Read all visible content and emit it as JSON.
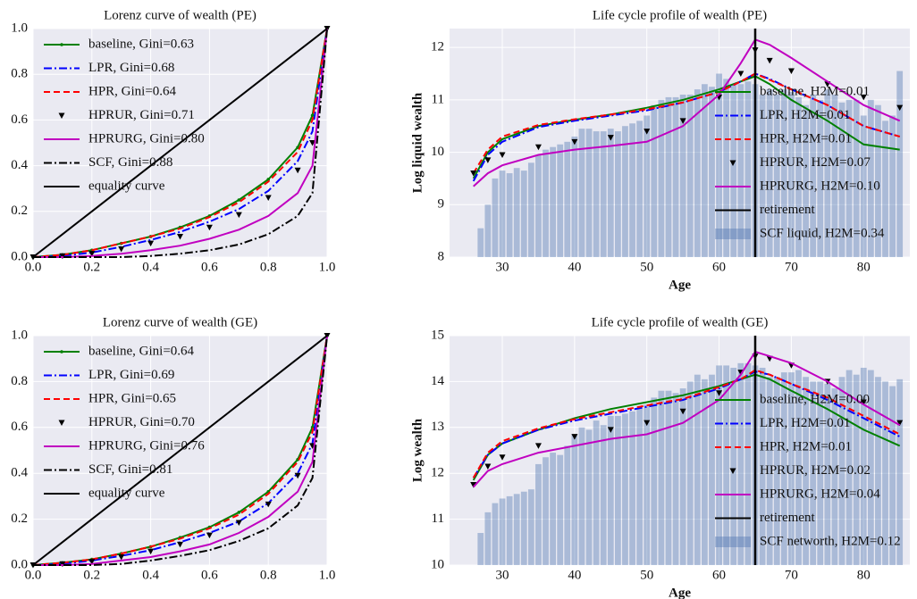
{
  "chart_data": [
    {
      "type": "line",
      "title": "Lorenz curve of wealth (PE)",
      "legend": "upper left",
      "grid": true,
      "xlim": [
        0,
        1
      ],
      "ylim": [
        0,
        1
      ],
      "xticks": [
        {
          "value": 0,
          "label": "0.0"
        },
        0.2,
        0.4,
        0.6,
        0.8,
        {
          "value": 1,
          "label": "1.0"
        }
      ],
      "yticks": [
        {
          "value": 0,
          "label": "0.0"
        },
        0.2,
        0.4,
        0.6,
        0.8,
        {
          "value": 1,
          "label": "1.0"
        }
      ],
      "x": [
        0,
        0.1,
        0.2,
        0.3,
        0.4,
        0.5,
        0.6,
        0.7,
        0.8,
        0.9,
        0.95,
        1
      ],
      "series": [
        {
          "name": "baseline, Gini=0.63",
          "color": "#008000",
          "linestyle": "-",
          "marker": ".",
          "values": [
            0,
            0.01,
            0.03,
            0.06,
            0.09,
            0.13,
            0.18,
            0.25,
            0.34,
            0.48,
            0.62,
            1
          ]
        },
        {
          "name": "LPR, Gini=0.68",
          "color": "#0000ff",
          "linestyle": "-.",
          "marker": "none",
          "values": [
            0,
            0.005,
            0.02,
            0.045,
            0.075,
            0.11,
            0.155,
            0.21,
            0.29,
            0.42,
            0.55,
            1
          ]
        },
        {
          "name": "HPR, Gini=0.64",
          "color": "#ff0000",
          "linestyle": "--",
          "marker": "none",
          "values": [
            0,
            0.01,
            0.03,
            0.06,
            0.09,
            0.125,
            0.175,
            0.24,
            0.33,
            0.46,
            0.6,
            1
          ]
        },
        {
          "name": "HPRUR, Gini=0.71",
          "color": "#000000",
          "linestyle": "none",
          "marker": "v",
          "values": [
            0,
            0.005,
            0.015,
            0.035,
            0.06,
            0.09,
            0.13,
            0.185,
            0.26,
            0.38,
            0.5,
            1
          ]
        },
        {
          "name": "HPRURG, Gini=0.80",
          "color": "#c000c0",
          "linestyle": "-",
          "marker": "none",
          "values": [
            0,
            0,
            0.005,
            0.015,
            0.03,
            0.05,
            0.08,
            0.12,
            0.18,
            0.28,
            0.4,
            1
          ]
        },
        {
          "name": "SCF, Gini=0.88",
          "color": "#000000",
          "linestyle": "-.",
          "marker": "none",
          "values": [
            0,
            0,
            0,
            0,
            0.005,
            0.015,
            0.03,
            0.055,
            0.1,
            0.18,
            0.28,
            1
          ]
        },
        {
          "name": "equality curve",
          "color": "#000000",
          "linestyle": "-",
          "marker": "none",
          "values": [
            0,
            0.1,
            0.2,
            0.3,
            0.4,
            0.5,
            0.6,
            0.7,
            0.8,
            0.9,
            0.95,
            1
          ]
        }
      ]
    },
    {
      "type": "combo",
      "title": "Life cycle profile of wealth (PE)",
      "x_label": "Age",
      "y_label": "Log liquid wealth",
      "legend": "lower right",
      "grid": true,
      "xlim": [
        22.7,
        86.4
      ],
      "ylim": [
        8,
        12.36
      ],
      "xticks": [
        30,
        40,
        50,
        60,
        70,
        80
      ],
      "yticks": [
        8,
        9,
        10,
        11,
        12
      ],
      "x": [
        26,
        28,
        30,
        35,
        40,
        45,
        50,
        55,
        60,
        63,
        65,
        67,
        70,
        75,
        80,
        85
      ],
      "series": [
        {
          "name": "baseline, H2M=0.01",
          "color": "#008000",
          "linestyle": "-",
          "marker": "none",
          "values": [
            9.5,
            10.0,
            10.25,
            10.5,
            10.62,
            10.72,
            10.85,
            11.0,
            11.2,
            11.35,
            11.45,
            11.3,
            11.0,
            10.6,
            10.15,
            10.05
          ]
        },
        {
          "name": "LPR, H2M=0.01",
          "color": "#0000ff",
          "linestyle": "-.",
          "marker": "none",
          "values": [
            9.45,
            9.95,
            10.2,
            10.48,
            10.6,
            10.7,
            10.8,
            10.95,
            11.15,
            11.35,
            11.5,
            11.4,
            11.2,
            10.9,
            10.5,
            10.3
          ]
        },
        {
          "name": "HPR, H2M=0.01",
          "color": "#ff0000",
          "linestyle": "--",
          "marker": "none",
          "values": [
            9.6,
            10.05,
            10.3,
            10.52,
            10.63,
            10.72,
            10.82,
            10.95,
            11.15,
            11.35,
            11.5,
            11.38,
            11.2,
            10.9,
            10.5,
            10.3
          ]
        },
        {
          "name": "HPRUR, H2M=0.07",
          "color": "#000000",
          "linestyle": "none",
          "marker": "v",
          "values": [
            9.6,
            9.85,
            9.95,
            10.1,
            10.2,
            10.28,
            10.4,
            10.6,
            11.05,
            11.5,
            11.95,
            11.75,
            11.55,
            11.3,
            11.05,
            10.85
          ]
        },
        {
          "name": "HPRURG, H2M=0.10",
          "color": "#c000c0",
          "linestyle": "-",
          "marker": "none",
          "values": [
            9.35,
            9.6,
            9.75,
            9.95,
            10.05,
            10.12,
            10.2,
            10.5,
            11.1,
            11.7,
            12.15,
            12.05,
            11.8,
            11.35,
            10.9,
            10.6
          ]
        },
        {
          "name": "retirement",
          "color": "#000000",
          "vline": 65
        },
        {
          "name": "SCF liquid, H2M=0.34",
          "color": "#4c72b0",
          "alpha": 0.4,
          "kind": "bar",
          "x": [
            27,
            28,
            29,
            30,
            31,
            32,
            33,
            34,
            35,
            36,
            37,
            38,
            39,
            40,
            41,
            42,
            43,
            44,
            45,
            46,
            47,
            48,
            49,
            50,
            51,
            52,
            53,
            54,
            55,
            56,
            57,
            58,
            59,
            60,
            61,
            62,
            63,
            64,
            65,
            66,
            67,
            68,
            69,
            70,
            71,
            72,
            73,
            74,
            75,
            76,
            77,
            78,
            79,
            80,
            81,
            82,
            83,
            84,
            85
          ],
          "values": [
            8.55,
            9.0,
            9.5,
            9.65,
            9.6,
            9.7,
            9.65,
            9.8,
            9.95,
            10.05,
            10.1,
            10.15,
            10.2,
            10.3,
            10.45,
            10.45,
            10.4,
            10.4,
            10.45,
            10.4,
            10.5,
            10.55,
            10.6,
            10.7,
            10.9,
            11.0,
            11.05,
            11.05,
            11.1,
            11.1,
            11.2,
            11.3,
            11.25,
            11.5,
            11.4,
            11.3,
            11.3,
            11.35,
            11.3,
            11.1,
            11.2,
            11.1,
            11.2,
            11.15,
            11.05,
            10.9,
            11.1,
            11.0,
            11.2,
            11.1,
            10.95,
            11.0,
            11.0,
            10.7,
            11.0,
            10.9,
            10.6,
            10.7,
            11.55
          ]
        }
      ]
    },
    {
      "type": "line",
      "title": "Lorenz curve of wealth (GE)",
      "legend": "upper left",
      "grid": true,
      "xlim": [
        0,
        1
      ],
      "ylim": [
        0,
        1
      ],
      "xticks": [
        {
          "value": 0,
          "label": "0.0"
        },
        0.2,
        0.4,
        0.6,
        0.8,
        {
          "value": 1,
          "label": "1.0"
        }
      ],
      "yticks": [
        {
          "value": 0,
          "label": "0.0"
        },
        0.2,
        0.4,
        0.6,
        0.8,
        {
          "value": 1,
          "label": "1.0"
        }
      ],
      "x": [
        0,
        0.1,
        0.2,
        0.3,
        0.4,
        0.5,
        0.6,
        0.7,
        0.8,
        0.9,
        0.95,
        1
      ],
      "series": [
        {
          "name": "baseline, Gini=0.64",
          "color": "#008000",
          "linestyle": "-",
          "marker": ".",
          "values": [
            0,
            0.01,
            0.025,
            0.05,
            0.08,
            0.12,
            0.165,
            0.23,
            0.32,
            0.46,
            0.6,
            1
          ]
        },
        {
          "name": "LPR, Gini=0.69",
          "color": "#0000ff",
          "linestyle": "-.",
          "marker": "none",
          "values": [
            0,
            0.005,
            0.02,
            0.04,
            0.065,
            0.1,
            0.14,
            0.19,
            0.27,
            0.4,
            0.53,
            1
          ]
        },
        {
          "name": "HPR, Gini=0.65",
          "color": "#ff0000",
          "linestyle": "--",
          "marker": "none",
          "values": [
            0,
            0.01,
            0.025,
            0.05,
            0.08,
            0.115,
            0.16,
            0.22,
            0.31,
            0.45,
            0.58,
            1
          ]
        },
        {
          "name": "HPRUR, Gini=0.70",
          "color": "#000000",
          "linestyle": "none",
          "marker": "v",
          "values": [
            0,
            0.005,
            0.015,
            0.035,
            0.06,
            0.09,
            0.13,
            0.185,
            0.265,
            0.39,
            0.52,
            1
          ]
        },
        {
          "name": "HPRURG, Gini=0.76",
          "color": "#c000c0",
          "linestyle": "-",
          "marker": "none",
          "values": [
            0,
            0,
            0.005,
            0.02,
            0.035,
            0.06,
            0.09,
            0.14,
            0.21,
            0.32,
            0.45,
            1
          ]
        },
        {
          "name": "SCF, Gini=0.81",
          "color": "#000000",
          "linestyle": "-.",
          "marker": "none",
          "values": [
            0,
            0,
            0,
            0.005,
            0.02,
            0.04,
            0.065,
            0.105,
            0.16,
            0.26,
            0.38,
            1
          ]
        },
        {
          "name": "equality curve",
          "color": "#000000",
          "linestyle": "-",
          "marker": "none",
          "values": [
            0,
            0.1,
            0.2,
            0.3,
            0.4,
            0.5,
            0.6,
            0.7,
            0.8,
            0.9,
            0.95,
            1
          ]
        }
      ]
    },
    {
      "type": "combo",
      "title": "Life cycle profile of wealth (GE)",
      "x_label": "Age",
      "y_label": "Log wealth",
      "legend": "lower right",
      "grid": true,
      "xlim": [
        22.7,
        86.4
      ],
      "ylim": [
        10,
        15
      ],
      "xticks": [
        30,
        40,
        50,
        60,
        70,
        80
      ],
      "yticks": [
        10,
        11,
        12,
        13,
        14,
        15
      ],
      "x": [
        26,
        28,
        30,
        35,
        40,
        45,
        50,
        55,
        60,
        63,
        65,
        67,
        70,
        75,
        80,
        85
      ],
      "series": [
        {
          "name": "baseline, H2M=0.00",
          "color": "#008000",
          "linestyle": "-",
          "marker": "none",
          "values": [
            11.85,
            12.4,
            12.65,
            12.95,
            13.2,
            13.4,
            13.55,
            13.7,
            13.9,
            14.05,
            14.15,
            14.05,
            13.8,
            13.4,
            12.95,
            12.6
          ]
        },
        {
          "name": "LPR, H2M=0.01",
          "color": "#0000ff",
          "linestyle": "-.",
          "marker": "none",
          "values": [
            11.9,
            12.4,
            12.65,
            12.95,
            13.15,
            13.3,
            13.45,
            13.6,
            13.85,
            14.05,
            14.22,
            14.15,
            13.95,
            13.6,
            13.2,
            12.8
          ]
        },
        {
          "name": "HPR, H2M=0.01",
          "color": "#ff0000",
          "linestyle": "--",
          "marker": "none",
          "values": [
            11.9,
            12.45,
            12.7,
            12.98,
            13.18,
            13.33,
            13.48,
            13.62,
            13.88,
            14.05,
            14.25,
            14.15,
            13.95,
            13.65,
            13.25,
            12.85
          ]
        },
        {
          "name": "HPRUR, H2M=0.02",
          "color": "#000000",
          "linestyle": "none",
          "marker": "v",
          "values": [
            11.75,
            12.15,
            12.35,
            12.6,
            12.8,
            12.95,
            13.1,
            13.35,
            13.75,
            14.2,
            14.55,
            14.5,
            14.35,
            14.0,
            13.55,
            13.1
          ]
        },
        {
          "name": "HPRURG, H2M=0.04",
          "color": "#c000c0",
          "linestyle": "-",
          "marker": "none",
          "values": [
            11.7,
            12.05,
            12.2,
            12.45,
            12.6,
            12.75,
            12.85,
            13.1,
            13.6,
            14.15,
            14.65,
            14.55,
            14.4,
            14.0,
            13.5,
            13.05
          ]
        },
        {
          "name": "retirement",
          "color": "#000000",
          "vline": 65
        },
        {
          "name": "SCF networth, H2M=0.12",
          "color": "#4c72b0",
          "alpha": 0.4,
          "kind": "bar",
          "x": [
            27,
            28,
            29,
            30,
            31,
            32,
            33,
            34,
            35,
            36,
            37,
            38,
            39,
            40,
            41,
            42,
            43,
            44,
            45,
            46,
            47,
            48,
            49,
            50,
            51,
            52,
            53,
            54,
            55,
            56,
            57,
            58,
            59,
            60,
            61,
            62,
            63,
            64,
            65,
            66,
            67,
            68,
            69,
            70,
            71,
            72,
            73,
            74,
            75,
            76,
            77,
            78,
            79,
            80,
            81,
            82,
            83,
            84,
            85
          ],
          "values": [
            10.7,
            11.15,
            11.35,
            11.45,
            11.5,
            11.55,
            11.6,
            11.65,
            12.2,
            12.35,
            12.45,
            12.4,
            12.6,
            12.85,
            13.0,
            12.95,
            13.15,
            13.05,
            13.25,
            13.25,
            13.3,
            13.35,
            13.45,
            13.5,
            13.65,
            13.8,
            13.8,
            13.75,
            13.85,
            14.0,
            14.15,
            14.05,
            14.15,
            14.35,
            14.35,
            14.3,
            14.4,
            14.4,
            14.35,
            14.3,
            14.1,
            14.1,
            14.2,
            14.2,
            14.25,
            14.1,
            14.0,
            14.0,
            13.95,
            13.85,
            14.1,
            14.25,
            14.15,
            14.3,
            14.25,
            14.1,
            14.0,
            13.9,
            14.05
          ]
        }
      ]
    }
  ]
}
